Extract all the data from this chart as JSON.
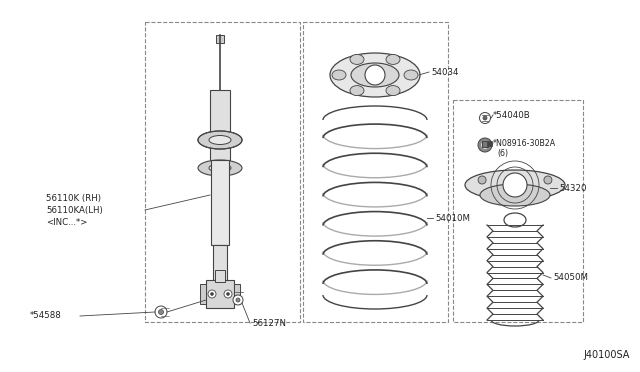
{
  "bg_color": "#ffffff",
  "line_color": "#444444",
  "dashed_box_color": "#888888",
  "diagram_id": "J40100SA",
  "label_color": "#222222",
  "parts_labels": {
    "56110K_RH": "56110K (RH)",
    "56110KA_LH": "56110KA(LH)",
    "INC": "<INC...*>",
    "54588": "*54588",
    "56127N": "56127N",
    "54034": "54034",
    "54010M": "54010M",
    "54040B": "*54040B",
    "N08916": "*N08916-30B2A",
    "N08916b": "(6)",
    "54320": "54320",
    "54050M": "54050M"
  }
}
